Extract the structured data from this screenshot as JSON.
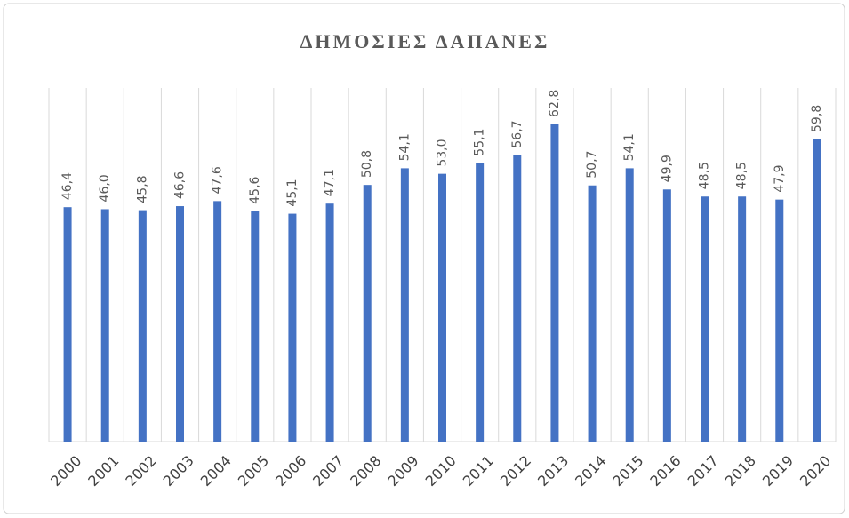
{
  "chart_data": {
    "type": "bar",
    "title": "ΔΗΜΟΣΙΕΣ ΔΑΠΑΝΕΣ",
    "categories": [
      "2000",
      "2001",
      "2002",
      "2003",
      "2004",
      "2005",
      "2006",
      "2007",
      "2008",
      "2009",
      "2010",
      "2011",
      "2012",
      "2013",
      "2014",
      "2015",
      "2016",
      "2017",
      "2018",
      "2019",
      "2020"
    ],
    "values": [
      46.4,
      46.0,
      45.8,
      46.6,
      47.6,
      45.6,
      45.1,
      47.1,
      50.8,
      54.1,
      53.0,
      55.1,
      56.7,
      62.8,
      50.7,
      54.1,
      49.9,
      48.5,
      48.5,
      47.9,
      59.8
    ],
    "value_labels": [
      "46,4",
      "46,0",
      "45,8",
      "46,6",
      "47,6",
      "45,6",
      "45,1",
      "47,1",
      "50,8",
      "54,1",
      "53,0",
      "55,1",
      "56,7",
      "62,8",
      "50,7",
      "54,1",
      "49,9",
      "48,5",
      "48,5",
      "47,9",
      "59,8"
    ],
    "color": "#4472c4",
    "ylim": [
      0,
      70
    ],
    "grid": true
  }
}
